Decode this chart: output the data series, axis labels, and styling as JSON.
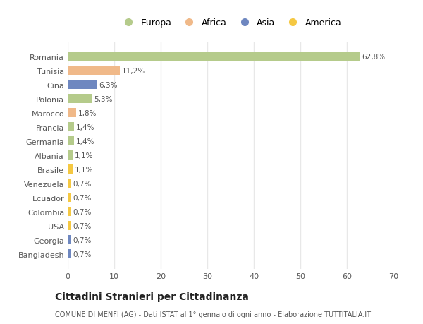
{
  "categories": [
    "Romania",
    "Tunisia",
    "Cina",
    "Polonia",
    "Marocco",
    "Francia",
    "Germania",
    "Albania",
    "Brasile",
    "Venezuela",
    "Ecuador",
    "Colombia",
    "USA",
    "Georgia",
    "Bangladesh"
  ],
  "values": [
    62.8,
    11.2,
    6.3,
    5.3,
    1.8,
    1.4,
    1.4,
    1.1,
    1.1,
    0.7,
    0.7,
    0.7,
    0.7,
    0.7,
    0.7
  ],
  "labels": [
    "62,8%",
    "11,2%",
    "6,3%",
    "5,3%",
    "1,8%",
    "1,4%",
    "1,4%",
    "1,1%",
    "1,1%",
    "0,7%",
    "0,7%",
    "0,7%",
    "0,7%",
    "0,7%",
    "0,7%"
  ],
  "colors": [
    "#b5cb8b",
    "#f0b989",
    "#6e87c0",
    "#b5cb8b",
    "#f0b989",
    "#b5cb8b",
    "#b5cb8b",
    "#b5cb8b",
    "#f5c842",
    "#f5c842",
    "#f5c842",
    "#f5c842",
    "#f5c842",
    "#6e87c0",
    "#6e87c0"
  ],
  "legend_labels": [
    "Europa",
    "Africa",
    "Asia",
    "America"
  ],
  "legend_colors": [
    "#b5cb8b",
    "#f0b989",
    "#6e87c0",
    "#f5c842"
  ],
  "xlim": [
    0,
    70
  ],
  "xticks": [
    0,
    10,
    20,
    30,
    40,
    50,
    60,
    70
  ],
  "title": "Cittadini Stranieri per Cittadinanza",
  "subtitle": "COMUNE DI MENFI (AG) - Dati ISTAT al 1° gennaio di ogni anno - Elaborazione TUTTITALIA.IT",
  "background_color": "#ffffff",
  "grid_color": "#e8e8e8"
}
